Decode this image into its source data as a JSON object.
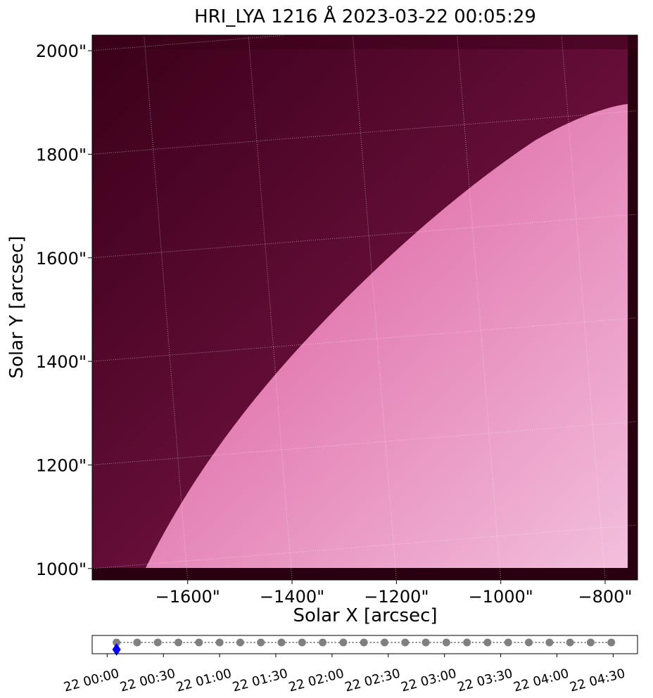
{
  "chart_data": [
    {
      "type": "image",
      "title": "HRI_LYA 1216 Å 2023-03-22 00:05:29",
      "xlabel": "Solar X [arcsec]",
      "ylabel": "Solar Y [arcsec]",
      "xlim": [
        -1783,
        -738
      ],
      "ylim": [
        978,
        2030
      ],
      "xticks": [
        {
          "value": -1600,
          "label": "−1600\""
        },
        {
          "value": -1400,
          "label": "−1400\""
        },
        {
          "value": -1200,
          "label": "−1200\""
        },
        {
          "value": -1000,
          "label": "−1000\""
        },
        {
          "value": -800,
          "label": "−800\""
        }
      ],
      "yticks": [
        {
          "value": 1000,
          "label": "1000\""
        },
        {
          "value": 1200,
          "label": "1200\""
        },
        {
          "value": 1400,
          "label": "1400\""
        },
        {
          "value": 1600,
          "label": "1600\""
        },
        {
          "value": 1800,
          "label": "1800\""
        },
        {
          "value": 2000,
          "label": "2000\""
        }
      ],
      "grid": true,
      "colormap": [
        "#3a0018",
        "#8c1a55",
        "#f8c8e4"
      ]
    },
    {
      "type": "timeline",
      "x": [
        "22 00:05",
        "22 00:16",
        "22 00:27",
        "22 00:38",
        "22 00:49",
        "22 01:00",
        "22 01:11",
        "22 01:22",
        "22 01:33",
        "22 01:44",
        "22 01:55",
        "22 02:06",
        "22 02:17",
        "22 02:28",
        "22 02:39",
        "22 02:50",
        "22 03:01",
        "22 03:12",
        "22 03:23",
        "22 03:34",
        "22 03:45",
        "22 03:56",
        "22 04:07",
        "22 04:18",
        "22 04:29"
      ],
      "xlim": [
        "21 23:52",
        "22 04:43"
      ],
      "xticks": [
        "22 00:00",
        "22 00:30",
        "22 01:00",
        "22 01:30",
        "22 02:00",
        "22 02:30",
        "22 03:00",
        "22 03:30",
        "22 04:00",
        "22 04:30"
      ],
      "color": "#808080",
      "highlight": 0,
      "highlight_color": "#0000ff"
    }
  ]
}
